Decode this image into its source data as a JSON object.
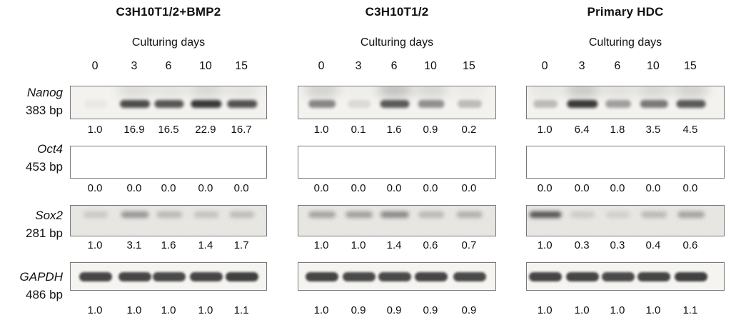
{
  "figure": {
    "gene_labels": [
      {
        "name": "Nanog",
        "size": "383 bp"
      },
      {
        "name": "Oct4",
        "size": "453 bp"
      },
      {
        "name": "Sox2",
        "size": "281 bp"
      },
      {
        "name": "GAPDH",
        "size": "486 bp"
      }
    ],
    "panels": [
      {
        "title": "C3H10T1/2+BMP2",
        "days_label": "Culturing days",
        "days": [
          "0",
          "3",
          "6",
          "10",
          "15"
        ],
        "rows": [
          {
            "gene": "Nanog",
            "values": [
              "1.0",
              "16.9",
              "16.5",
              "22.9",
              "16.7"
            ],
            "bands": [
              0.05,
              0.85,
              0.8,
              0.95,
              0.82
            ],
            "smears": [
              0,
              0.14,
              0.1,
              0.18,
              0.1
            ]
          },
          {
            "gene": "Oct4",
            "values": [
              "0.0",
              "0.0",
              "0.0",
              "0.0",
              "0.0"
            ],
            "bands": [
              0,
              0,
              0,
              0,
              0
            ],
            "smears": [
              0,
              0,
              0,
              0,
              0
            ]
          },
          {
            "gene": "Sox2",
            "values": [
              "1.0",
              "3.1",
              "1.6",
              "1.4",
              "1.7"
            ],
            "bands": [
              0.18,
              0.5,
              0.28,
              0.22,
              0.26
            ],
            "smears": [
              0,
              0,
              0,
              0,
              0
            ]
          },
          {
            "gene": "GAPDH",
            "values": [
              "1.0",
              "1.0",
              "1.0",
              "1.0",
              "1.1"
            ],
            "bands": [
              0.87,
              0.87,
              0.85,
              0.87,
              0.9
            ],
            "smears": [
              0,
              0,
              0,
              0,
              0
            ]
          }
        ]
      },
      {
        "title": "C3H10T1/2",
        "days_label": "Culturing days",
        "days": [
          "0",
          "3",
          "6",
          "10",
          "15"
        ],
        "rows": [
          {
            "gene": "Nanog",
            "values": [
              "1.0",
              "0.1",
              "1.6",
              "0.9",
              "0.2"
            ],
            "bands": [
              0.55,
              0.12,
              0.78,
              0.5,
              0.28
            ],
            "smears": [
              0.22,
              0.03,
              0.32,
              0.18,
              0.05
            ]
          },
          {
            "gene": "Oct4",
            "values": [
              "0.0",
              "0.0",
              "0.0",
              "0.0",
              "0.0"
            ],
            "bands": [
              0,
              0,
              0,
              0,
              0
            ],
            "smears": [
              0,
              0,
              0,
              0,
              0
            ]
          },
          {
            "gene": "Sox2",
            "values": [
              "1.0",
              "1.0",
              "1.4",
              "0.6",
              "0.7"
            ],
            "bands": [
              0.42,
              0.44,
              0.58,
              0.28,
              0.34
            ],
            "smears": [
              0,
              0,
              0,
              0,
              0
            ]
          },
          {
            "gene": "GAPDH",
            "values": [
              "1.0",
              "0.9",
              "0.9",
              "0.9",
              "0.9"
            ],
            "bands": [
              0.88,
              0.85,
              0.85,
              0.87,
              0.85
            ],
            "smears": [
              0,
              0,
              0,
              0,
              0
            ]
          }
        ]
      },
      {
        "title": "Primary HDC",
        "days_label": "Culturing days",
        "days": [
          "0",
          "3",
          "6",
          "10",
          "15"
        ],
        "rows": [
          {
            "gene": "Nanog",
            "values": [
              "1.0",
              "6.4",
              "1.8",
              "3.5",
              "4.5"
            ],
            "bands": [
              0.28,
              0.95,
              0.42,
              0.62,
              0.78
            ],
            "smears": [
              0.08,
              0.28,
              0.12,
              0.18,
              0.22
            ]
          },
          {
            "gene": "Oct4",
            "values": [
              "0.0",
              "0.0",
              "0.0",
              "0.0",
              "0.0"
            ],
            "bands": [
              0,
              0,
              0,
              0,
              0
            ],
            "smears": [
              0,
              0,
              0,
              0,
              0
            ]
          },
          {
            "gene": "Sox2",
            "values": [
              "1.0",
              "0.3",
              "0.3",
              "0.4",
              "0.6"
            ],
            "bands": [
              0.92,
              0.16,
              0.14,
              0.28,
              0.42
            ],
            "smears": [
              0,
              0,
              0,
              0,
              0
            ]
          },
          {
            "gene": "GAPDH",
            "values": [
              "1.0",
              "1.0",
              "1.0",
              "1.0",
              "1.1"
            ],
            "bands": [
              0.87,
              0.88,
              0.85,
              0.88,
              0.9
            ],
            "smears": [
              0,
              0,
              0,
              0,
              0
            ]
          }
        ]
      }
    ]
  }
}
